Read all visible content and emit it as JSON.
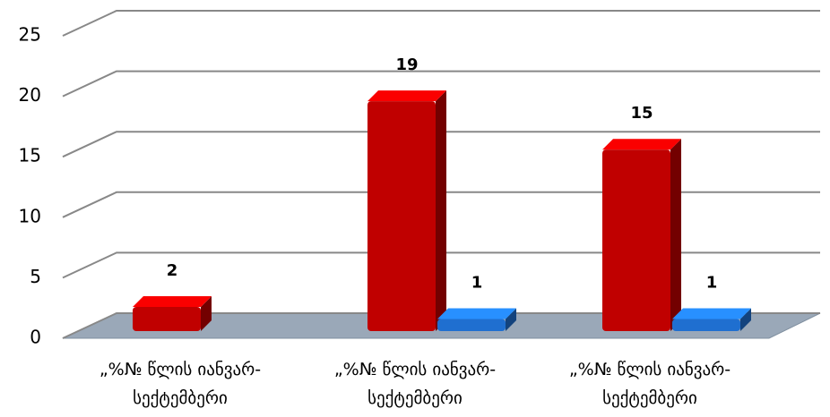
{
  "chart_data": {
    "type": "bar3d",
    "categories": [
      "„%№ წლის იანვარ-სექტემბერი",
      "„%№ წლის იანვარ-სექტემბერი",
      "„%№ წლის იანვარ-სექტემბერი"
    ],
    "series": [
      {
        "color": "#c00000",
        "values": [
          2,
          19,
          15
        ]
      },
      {
        "color": "#1f6fd0",
        "values": [
          null,
          1,
          1
        ]
      }
    ],
    "ylim": [
      0,
      25
    ],
    "yticks": [
      0,
      5,
      10,
      15,
      20,
      25
    ],
    "grid": true
  }
}
